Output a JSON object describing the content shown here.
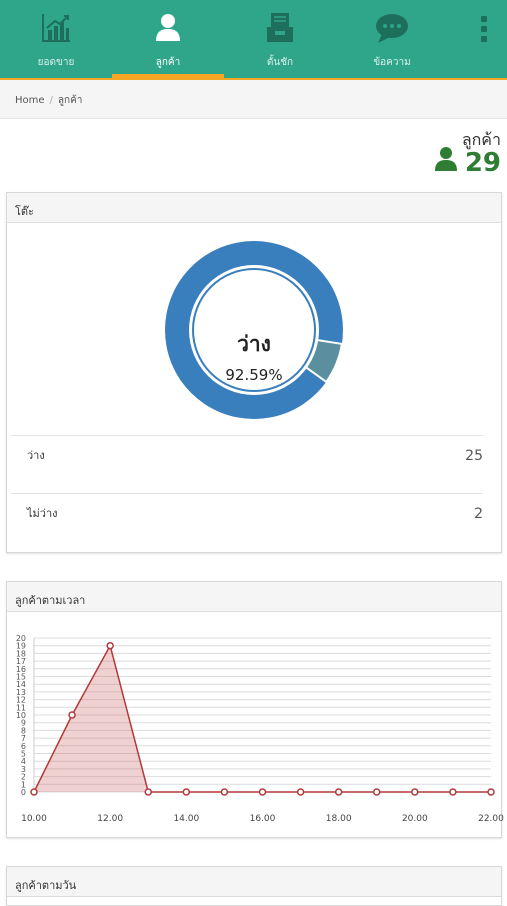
{
  "nav": {
    "items": [
      {
        "label": "ยอดขาย",
        "icon": "bar-chart-icon"
      },
      {
        "label": "ลูกค้า",
        "icon": "user-icon"
      },
      {
        "label": "ตั้นชัก",
        "icon": "archive-icon"
      },
      {
        "label": "ข้อความ",
        "icon": "chat-icon"
      }
    ],
    "active_index": 1
  },
  "breadcrumb": {
    "home": "Home",
    "separator": "/",
    "current": "ลูกค้า"
  },
  "customers": {
    "title": "ลูกค้า",
    "count": "29"
  },
  "table_panel": {
    "title": "โต๊ะ",
    "donut_title": "ว่าง",
    "donut_percent": "92.59%",
    "rows": [
      {
        "label": "ว่าง",
        "value": "25"
      },
      {
        "label": "ไม่ว่าง",
        "value": "2"
      }
    ]
  },
  "time_panel": {
    "title": "ลูกค้าตามเวลา"
  },
  "day_panel": {
    "title": "ลูกค้าตามวัน"
  },
  "colors": {
    "nav_bg": "#2fa58a",
    "accent": "#f5a623",
    "free": "#3a7fbd",
    "busy": "#5b8fa0",
    "line": "#b03a3a",
    "count_green": "#2e7d32"
  },
  "chart_data": {
    "type": "area",
    "x_ticks": [
      "10.00",
      "12.00",
      "14.00",
      "16.00",
      "18.00",
      "20.00",
      "22.00"
    ],
    "x": [
      10,
      11,
      12,
      13,
      14,
      15,
      16,
      17,
      18,
      19,
      20,
      21,
      22
    ],
    "values": [
      0,
      10,
      19,
      0,
      0,
      0,
      0,
      0,
      0,
      0,
      0,
      0,
      0
    ],
    "ylim": [
      0,
      20
    ],
    "y_ticks": [
      "0",
      "1",
      "2",
      "3",
      "4",
      "5",
      "6",
      "7",
      "8",
      "9",
      "10",
      "11",
      "12",
      "13",
      "14",
      "15",
      "16",
      "17",
      "18",
      "19",
      "20"
    ],
    "grid": true,
    "donut": {
      "free": 25,
      "busy": 2
    }
  }
}
